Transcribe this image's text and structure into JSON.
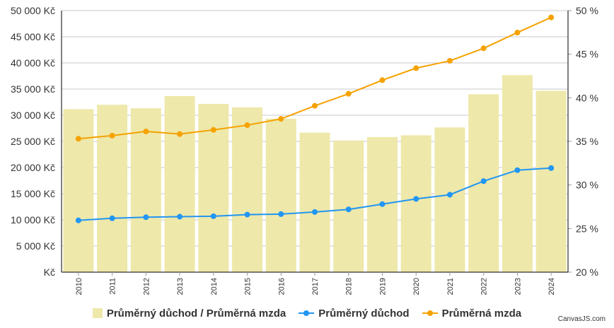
{
  "credit": "CanvasJS.com",
  "colors": {
    "ratio_bar": "#eee8aa",
    "pension_line": "#2196f3",
    "wage_line": "#f5a200",
    "grid": "#c8c8c8"
  },
  "chart_data": {
    "type": "bar+line",
    "title": "",
    "categories": [
      "2010",
      "2011",
      "2012",
      "2013",
      "2014",
      "2015",
      "2016",
      "2017",
      "2018",
      "2019",
      "2020",
      "2021",
      "2022",
      "2023",
      "2024"
    ],
    "left_axis": {
      "ticks": [
        "Kč",
        "5 000 Kč",
        "10 000 Kč",
        "15 000 Kč",
        "20 000 Kč",
        "25 000 Kč",
        "30 000 Kč",
        "35 000 Kč",
        "40 000 Kč",
        "45 000 Kč",
        "50 000 Kč"
      ],
      "ylim": [
        0,
        50000
      ]
    },
    "right_axis": {
      "ticks": [
        "20 %",
        "25 %",
        "30 %",
        "35 %",
        "40 %",
        "45 %",
        "50 %"
      ],
      "ylim": [
        20,
        50
      ]
    },
    "grid": true,
    "legend_position": "bottom",
    "series": [
      {
        "name": "Průměrný důchod / Průměrná mzda",
        "type": "bar",
        "axis": "right",
        "values": [
          38.7,
          39.2,
          38.8,
          40.2,
          39.3,
          38.9,
          37.6,
          36.0,
          35.1,
          35.5,
          35.7,
          36.6,
          40.4,
          42.6,
          40.8
        ]
      },
      {
        "name": "Průměrný důchod",
        "type": "line",
        "axis": "left",
        "values": [
          9900,
          10300,
          10500,
          10600,
          10700,
          11000,
          11100,
          11500,
          12000,
          13000,
          14000,
          14800,
          17400,
          19500,
          19900
        ]
      },
      {
        "name": "Průměrná mzda",
        "type": "line",
        "axis": "left",
        "values": [
          25500,
          26100,
          26900,
          26400,
          27200,
          28100,
          29300,
          31800,
          34100,
          36700,
          39000,
          40400,
          42800,
          45800,
          48700
        ]
      }
    ]
  }
}
